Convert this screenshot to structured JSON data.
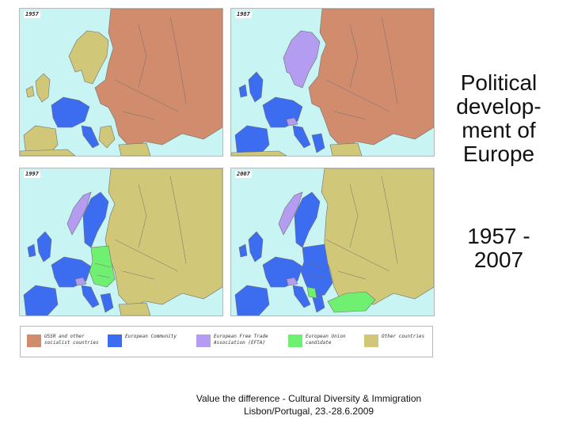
{
  "slide": {
    "title": "Political\ndevelop-\nment of\nEurope",
    "period": "1957 -\n2007",
    "footer_line1": "Value the difference - Cultural Diversity & Immigration",
    "footer_line2": "Lisbon/Portugal, 23.-28.6.2009"
  },
  "colors": {
    "sea": "#c8f4f4",
    "ussr_socialist": "#d08c6c",
    "european_community": "#3c6cf0",
    "efta": "#b49cf0",
    "eu_candidate": "#70f070",
    "other": "#d0c878",
    "border": "#707070"
  },
  "maps": [
    {
      "year": "1957"
    },
    {
      "year": "1987"
    },
    {
      "year": "1997"
    },
    {
      "year": "2007"
    }
  ],
  "legend": [
    {
      "label": "USSR and other socialist countries",
      "color_key": "ussr_socialist"
    },
    {
      "label": "European Community",
      "color_key": "european_community"
    },
    {
      "label": "European Free Trade Association (EFTA)",
      "color_key": "efta"
    },
    {
      "label": "European Union candidate",
      "color_key": "eu_candidate"
    },
    {
      "label": "Other countries",
      "color_key": "other"
    }
  ]
}
